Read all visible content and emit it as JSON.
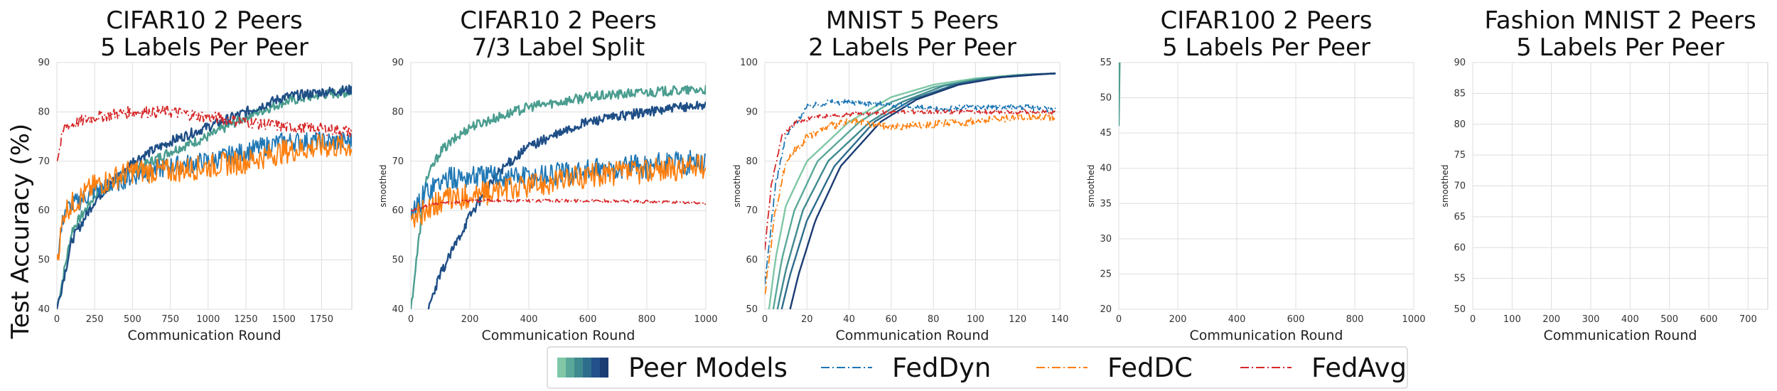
{
  "figure": {
    "ylabel": "Test Accuracy (%)"
  },
  "legend": {
    "entries": [
      {
        "label": "Peer Models",
        "kind": "gradient",
        "colors": [
          "#7fc7a6",
          "#5aa899",
          "#3f8a8f",
          "#2e6c8c",
          "#23508a",
          "#1b3b73"
        ]
      },
      {
        "label": "FedDyn",
        "kind": "line",
        "color": "#1f77b4",
        "dash": "dashdot"
      },
      {
        "label": "FedDC",
        "kind": "line",
        "color": "#ff7f0e",
        "dash": "dashdot"
      },
      {
        "label": "FedAvg",
        "kind": "line",
        "color": "#d62728",
        "dash": "dashdot"
      }
    ]
  },
  "chart_data": [
    {
      "type": "line",
      "title": "CIFAR10 2 Peers\n5 Labels Per Peer",
      "xlabel": "Communication Round",
      "ylabel": "",
      "xlim": [
        0,
        1950
      ],
      "ylim": [
        40,
        90
      ],
      "xticks": [
        0,
        250,
        500,
        750,
        1000,
        1250,
        1500,
        1750
      ],
      "yticks": [
        40,
        50,
        60,
        70,
        80,
        90
      ],
      "grid": true,
      "series": [
        {
          "kind": "peer",
          "color": "#4a9d8f",
          "noise": 1.0,
          "points": [
            [
              0,
              40
            ],
            [
              100,
              56
            ],
            [
              250,
              63
            ],
            [
              500,
              68
            ],
            [
              750,
              72
            ],
            [
              1000,
              75
            ],
            [
              1250,
              79
            ],
            [
              1500,
              82
            ],
            [
              1750,
              83.5
            ],
            [
              1950,
              84
            ]
          ]
        },
        {
          "kind": "peer",
          "color": "#1f4e86",
          "noise": 1.0,
          "points": [
            [
              0,
              40
            ],
            [
              100,
              54
            ],
            [
              250,
              62
            ],
            [
              500,
              70
            ],
            [
              750,
              74
            ],
            [
              1000,
              77
            ],
            [
              1250,
              80
            ],
            [
              1500,
              83
            ],
            [
              1750,
              84
            ],
            [
              1950,
              84.5
            ]
          ]
        },
        {
          "kind": "baseline",
          "color": "#1f77b4",
          "noise": 2.0,
          "points": [
            [
              0,
              50
            ],
            [
              50,
              60
            ],
            [
              250,
              64
            ],
            [
              500,
              67
            ],
            [
              750,
              69
            ],
            [
              1000,
              70
            ],
            [
              1250,
              72
            ],
            [
              1500,
              74
            ],
            [
              1750,
              74
            ],
            [
              1950,
              74
            ]
          ]
        },
        {
          "kind": "baseline",
          "color": "#ff7f0e",
          "noise": 2.5,
          "points": [
            [
              0,
              50
            ],
            [
              50,
              60
            ],
            [
              250,
              65
            ],
            [
              500,
              68
            ],
            [
              750,
              68
            ],
            [
              1000,
              69
            ],
            [
              1250,
              70
            ],
            [
              1500,
              72
            ],
            [
              1750,
              73
            ],
            [
              1950,
              73
            ]
          ]
        },
        {
          "kind": "baseline",
          "color": "#d62728",
          "noise": 1.2,
          "points": [
            [
              0,
              70
            ],
            [
              50,
              77
            ],
            [
              250,
              79
            ],
            [
              500,
              80
            ],
            [
              750,
              80
            ],
            [
              1000,
              79
            ],
            [
              1250,
              78
            ],
            [
              1500,
              77
            ],
            [
              1750,
              76.5
            ],
            [
              1950,
              76
            ]
          ]
        }
      ]
    },
    {
      "type": "line",
      "title": "CIFAR10 2 Peers\n7/3 Label Split",
      "xlabel": "Communication Round",
      "ylabel": "smoothed",
      "xlim": [
        0,
        1000
      ],
      "ylim": [
        40,
        90
      ],
      "xticks": [
        0,
        200,
        400,
        600,
        800,
        1000
      ],
      "yticks": [
        40,
        50,
        60,
        70,
        80,
        90
      ],
      "grid": true,
      "series": [
        {
          "kind": "peer",
          "color": "#4a9d8f",
          "noise": 1.0,
          "points": [
            [
              0,
              40
            ],
            [
              50,
              66
            ],
            [
              100,
              72
            ],
            [
              200,
              77
            ],
            [
              400,
              81
            ],
            [
              600,
              83
            ],
            [
              800,
              84
            ],
            [
              1000,
              84.5
            ]
          ]
        },
        {
          "kind": "peer",
          "color": "#1f4e86",
          "noise": 1.0,
          "points": [
            [
              60,
              40
            ],
            [
              100,
              47
            ],
            [
              200,
              59
            ],
            [
              300,
              68
            ],
            [
              400,
              73
            ],
            [
              600,
              78
            ],
            [
              800,
              80
            ],
            [
              1000,
              81.5
            ]
          ]
        },
        {
          "kind": "baseline",
          "color": "#1f77b4",
          "noise": 2.5,
          "points": [
            [
              0,
              58
            ],
            [
              50,
              64
            ],
            [
              100,
              66
            ],
            [
              200,
              67
            ],
            [
              400,
              67
            ],
            [
              600,
              68
            ],
            [
              800,
              69
            ],
            [
              1000,
              70
            ]
          ]
        },
        {
          "kind": "baseline",
          "color": "#ff7f0e",
          "noise": 2.5,
          "points": [
            [
              0,
              58
            ],
            [
              50,
              60
            ],
            [
              100,
              62
            ],
            [
              200,
              63
            ],
            [
              400,
              65
            ],
            [
              600,
              67
            ],
            [
              800,
              68
            ],
            [
              1000,
              69
            ]
          ]
        },
        {
          "kind": "baseline",
          "color": "#d62728",
          "noise": 0.3,
          "points": [
            [
              0,
              60
            ],
            [
              50,
              61
            ],
            [
              100,
              61.5
            ],
            [
              200,
              62
            ],
            [
              400,
              62
            ],
            [
              600,
              62
            ],
            [
              800,
              61.8
            ],
            [
              1000,
              61.5
            ]
          ]
        }
      ]
    },
    {
      "type": "line",
      "title": "MNIST 5 Peers\n2 Labels Per Peer",
      "xlabel": "Communication Round",
      "ylabel": "smoothed",
      "xlim": [
        0,
        140
      ],
      "ylim": [
        50,
        100
      ],
      "xticks": [
        0,
        20,
        40,
        60,
        80,
        100,
        120,
        140
      ],
      "yticks": [
        50,
        60,
        70,
        80,
        90,
        100
      ],
      "grid": true,
      "series": [
        {
          "kind": "peer",
          "color": "#7fc7a6",
          "noise": 0,
          "points": [
            [
              2,
              50
            ],
            [
              5,
              60
            ],
            [
              10,
              71
            ],
            [
              20,
              80
            ],
            [
              40,
              88
            ],
            [
              60,
              93
            ],
            [
              80,
              95.5
            ],
            [
              100,
              96.8
            ],
            [
              120,
              97.5
            ],
            [
              138,
              97.8
            ]
          ]
        },
        {
          "kind": "peer",
          "color": "#5aa899",
          "noise": 0,
          "points": [
            [
              4,
              50
            ],
            [
              8,
              60
            ],
            [
              14,
              70
            ],
            [
              25,
              80
            ],
            [
              45,
              88
            ],
            [
              60,
              92
            ],
            [
              80,
              95
            ],
            [
              100,
              96.6
            ],
            [
              120,
              97.5
            ],
            [
              138,
              97.8
            ]
          ]
        },
        {
          "kind": "peer",
          "color": "#3f8a8f",
          "noise": 0,
          "points": [
            [
              6,
              50
            ],
            [
              10,
              58
            ],
            [
              18,
              70
            ],
            [
              30,
              80
            ],
            [
              50,
              88
            ],
            [
              65,
              92
            ],
            [
              85,
              95.3
            ],
            [
              105,
              96.8
            ],
            [
              125,
              97.6
            ],
            [
              138,
              97.8
            ]
          ]
        },
        {
          "kind": "peer",
          "color": "#2e6c8c",
          "noise": 0,
          "points": [
            [
              8,
              50
            ],
            [
              12,
              57
            ],
            [
              20,
              68
            ],
            [
              33,
              79
            ],
            [
              52,
              88
            ],
            [
              70,
              92.5
            ],
            [
              90,
              95.5
            ],
            [
              110,
              97
            ],
            [
              130,
              97.6
            ],
            [
              138,
              97.8
            ]
          ]
        },
        {
          "kind": "peer",
          "color": "#1b3b73",
          "noise": 0,
          "points": [
            [
              12,
              50
            ],
            [
              16,
              57
            ],
            [
              24,
              68
            ],
            [
              36,
              79
            ],
            [
              55,
              88
            ],
            [
              72,
              92.5
            ],
            [
              92,
              95.5
            ],
            [
              112,
              97
            ],
            [
              130,
              97.6
            ],
            [
              138,
              97.8
            ]
          ]
        },
        {
          "kind": "baseline",
          "color": "#1f77b4",
          "noise": 0.6,
          "points": [
            [
              0,
              55
            ],
            [
              5,
              75
            ],
            [
              10,
              85
            ],
            [
              20,
              91
            ],
            [
              30,
              92
            ],
            [
              40,
              92
            ],
            [
              60,
              91.5
            ],
            [
              80,
              90.5
            ],
            [
              100,
              91
            ],
            [
              120,
              91
            ],
            [
              138,
              90.5
            ]
          ]
        },
        {
          "kind": "baseline",
          "color": "#ff7f0e",
          "noise": 0.8,
          "points": [
            [
              0,
              53
            ],
            [
              5,
              70
            ],
            [
              10,
              80
            ],
            [
              20,
              85
            ],
            [
              30,
              87
            ],
            [
              40,
              88
            ],
            [
              60,
              87
            ],
            [
              80,
              87.5
            ],
            [
              100,
              88
            ],
            [
              120,
              89
            ],
            [
              138,
              89
            ]
          ]
        },
        {
          "kind": "baseline",
          "color": "#d62728",
          "noise": 0.4,
          "points": [
            [
              0,
              62
            ],
            [
              3,
              75
            ],
            [
              8,
              85
            ],
            [
              15,
              88
            ],
            [
              25,
              89
            ],
            [
              40,
              89.5
            ],
            [
              60,
              90
            ],
            [
              80,
              90
            ],
            [
              100,
              90
            ],
            [
              120,
              90
            ],
            [
              138,
              90
            ]
          ]
        }
      ]
    },
    {
      "type": "line",
      "title": "CIFAR100 2 Peers\n5 Labels Per Peer",
      "xlabel": "Communication Round",
      "ylabel": "smoothed",
      "xlim": [
        0,
        1000
      ],
      "ylim": [
        20,
        55
      ],
      "xticks": [
        0,
        200,
        400,
        600,
        800,
        1000
      ],
      "yticks": [
        20,
        25,
        30,
        35,
        40,
        45,
        50,
        55
      ],
      "grid": true,
      "series": [
        {
          "kind": "peer",
          "color": "#4a9d8f",
          "noise": 0,
          "points": [
            [
              0,
              46
            ],
            [
              3,
              55
            ]
          ]
        }
      ]
    },
    {
      "type": "line",
      "title": "Fashion MNIST 2 Peers\n5 Labels Per Peer",
      "xlabel": "Communication Round",
      "ylabel": "smoothed",
      "xlim": [
        0,
        750
      ],
      "ylim": [
        50,
        90
      ],
      "xticks": [
        0,
        100,
        200,
        300,
        400,
        500,
        600,
        700
      ],
      "yticks": [
        50,
        55,
        60,
        65,
        70,
        75,
        80,
        85,
        90
      ],
      "grid": true,
      "series": []
    }
  ]
}
